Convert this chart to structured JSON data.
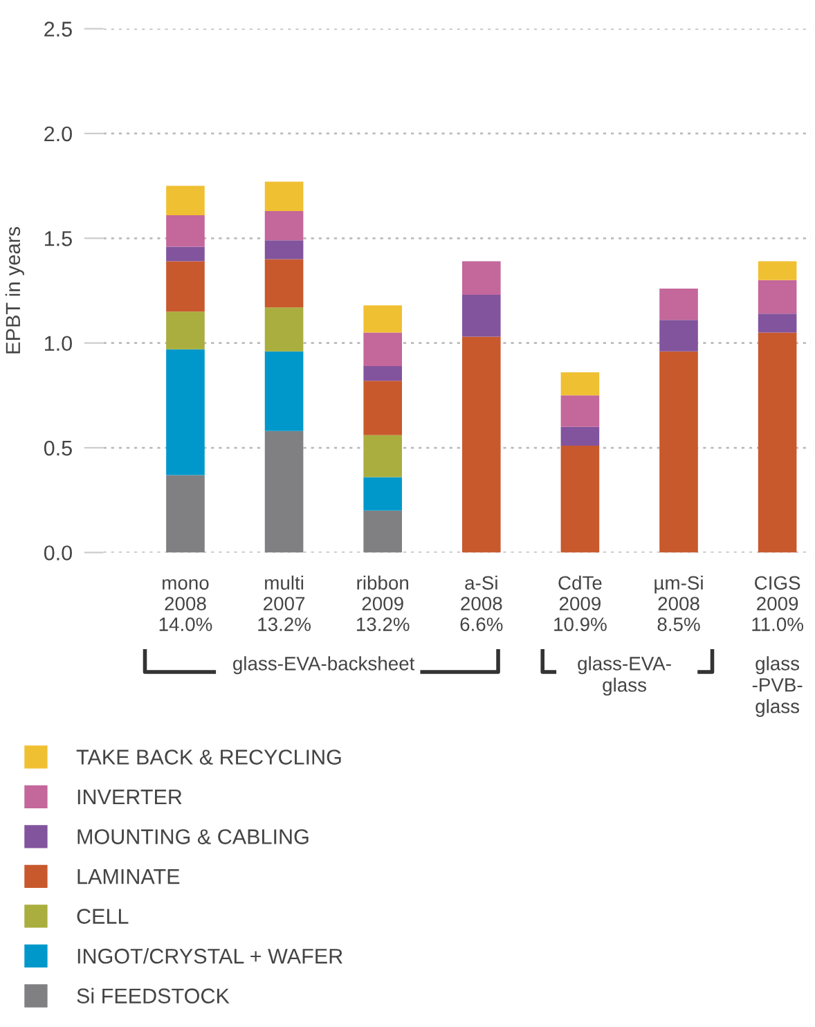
{
  "chart_data": {
    "type": "bar",
    "stacked": true,
    "ylabel": "EPBT in years",
    "categories": [
      "mono\n2008\n14.0%",
      "multi\n2007\n13.2%",
      "ribbon\n2009\n13.2%",
      "a-Si\n2008\n6.6%",
      "CdTe\n2009\n10.9%",
      "µm-Si\n2008\n8.5%",
      "CIGS\n2009\n11.0%"
    ],
    "series": [
      {
        "name": "Si FEEDSTOCK",
        "color": "#808083",
        "values": [
          0.37,
          0.58,
          0.2,
          null,
          null,
          null,
          null
        ]
      },
      {
        "name": "INGOT/CRYSTAL + WAFER",
        "color": "#0098cb",
        "values": [
          0.6,
          0.38,
          0.16,
          null,
          null,
          null,
          null
        ]
      },
      {
        "name": "CELL",
        "color": "#a9ae3e",
        "values": [
          0.18,
          0.21,
          0.2,
          null,
          null,
          null,
          null
        ]
      },
      {
        "name": "LAMINATE",
        "color": "#c8592d",
        "values": [
          0.24,
          0.23,
          0.26,
          1.03,
          0.51,
          0.96,
          1.05
        ]
      },
      {
        "name": "MOUNTING & CABLING",
        "color": "#82549d",
        "values": [
          0.07,
          0.09,
          0.07,
          0.2,
          0.09,
          0.15,
          0.09
        ]
      },
      {
        "name": "INVERTER",
        "color": "#c4679b",
        "values": [
          0.15,
          0.14,
          0.16,
          0.16,
          0.15,
          0.15,
          0.16
        ]
      },
      {
        "name": "TAKE BACK & RECYCLING",
        "color": "#f0c033",
        "values": [
          0.14,
          0.14,
          0.13,
          null,
          0.11,
          null,
          0.09
        ]
      }
    ],
    "ylim": [
      0,
      2.5
    ],
    "yticks": [
      {
        "value": 0,
        "label": "0.0"
      },
      0.5,
      {
        "value": 1,
        "label": "1.0"
      },
      1.5,
      {
        "value": 2,
        "label": "2.0"
      },
      2.5
    ],
    "grid": "y",
    "legend": "bottom",
    "annotations": [
      "glass-EVA-backsheet",
      "glass-EVA-\nglass",
      "glass\n-PVB-\nglass"
    ]
  }
}
